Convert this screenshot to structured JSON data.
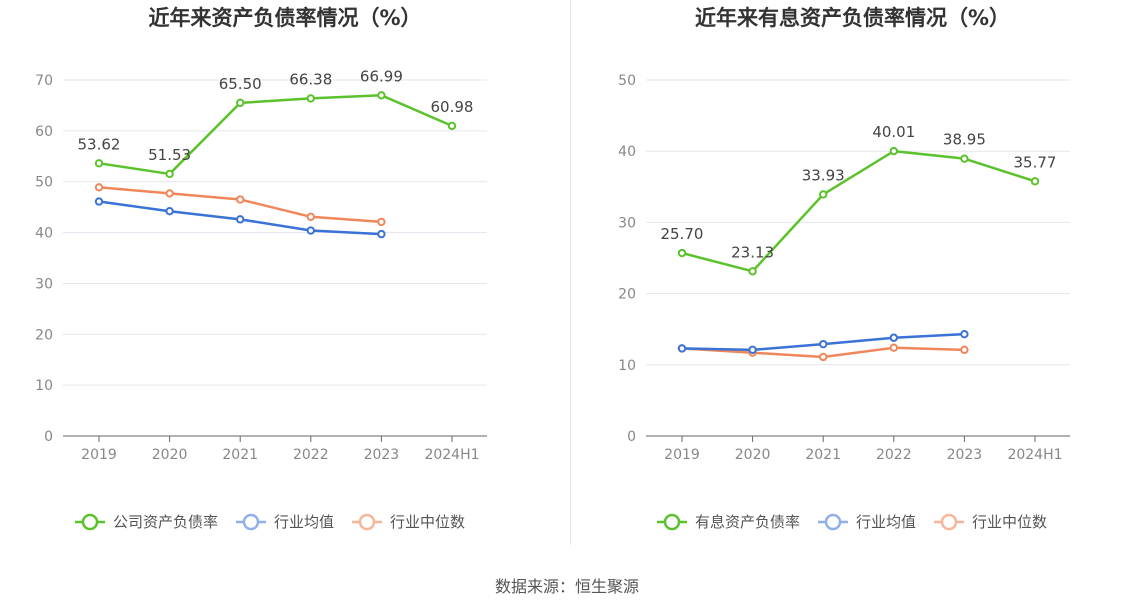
{
  "source": "数据来源：恒生聚源",
  "chart_data": [
    {
      "type": "line",
      "title": "近年来资产负债率情况（%）",
      "categories": [
        "2019",
        "2020",
        "2021",
        "2022",
        "2023",
        "2024H1"
      ],
      "ylim": [
        0,
        70
      ],
      "yticks": [
        0,
        10,
        20,
        30,
        40,
        50,
        60,
        70
      ],
      "grid": true,
      "legend_position": "bottom",
      "series": [
        {
          "name": "公司资产负债率",
          "color": "#5bc22c",
          "values": [
            53.62,
            51.53,
            65.5,
            66.38,
            66.99,
            60.98
          ],
          "labels": [
            "53.62",
            "51.53",
            "65.50",
            "66.38",
            "66.99",
            "60.98"
          ]
        },
        {
          "name": "行业均值",
          "color": "#3a72d6",
          "values": [
            46.1,
            44.2,
            42.6,
            40.4,
            39.7,
            null
          ]
        },
        {
          "name": "行业中位数",
          "color": "#f0875a",
          "values": [
            48.9,
            47.7,
            46.5,
            43.1,
            42.1,
            null
          ]
        }
      ]
    },
    {
      "type": "line",
      "title": "近年来有息资产负债率情况（%）",
      "categories": [
        "2019",
        "2020",
        "2021",
        "2022",
        "2023",
        "2024H1"
      ],
      "ylim": [
        0,
        50
      ],
      "yticks": [
        0,
        10,
        20,
        30,
        40,
        50
      ],
      "grid": true,
      "legend_position": "bottom",
      "series": [
        {
          "name": "有息资产负债率",
          "color": "#5bc22c",
          "values": [
            25.7,
            23.13,
            33.93,
            40.01,
            38.95,
            35.77
          ],
          "labels": [
            "25.70",
            "23.13",
            "33.93",
            "40.01",
            "38.95",
            "35.77"
          ]
        },
        {
          "name": "行业均值",
          "color": "#3a72d6",
          "values": [
            12.3,
            12.1,
            12.9,
            13.8,
            14.3,
            null
          ]
        },
        {
          "name": "行业中位数",
          "color": "#f0875a",
          "values": [
            12.3,
            11.7,
            11.1,
            12.4,
            12.1,
            null
          ]
        }
      ]
    }
  ]
}
